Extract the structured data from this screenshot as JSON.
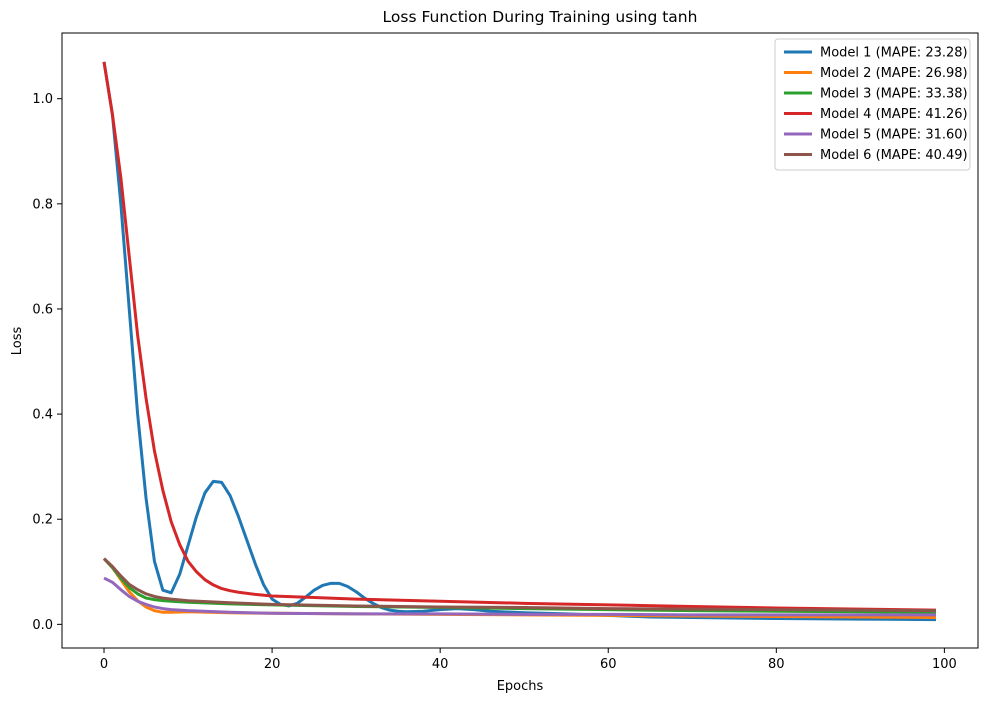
{
  "chart_data": {
    "type": "line",
    "title": "Loss Function During Training using tanh",
    "xlabel": "Epochs",
    "ylabel": "Loss",
    "xlim": [
      -5,
      104
    ],
    "ylim": [
      -0.045,
      1.125
    ],
    "xticks": [
      0,
      20,
      40,
      60,
      80,
      100
    ],
    "yticks": [
      0.0,
      0.2,
      0.4,
      0.6,
      0.8,
      1.0
    ],
    "xtick_labels": [
      "0",
      "20",
      "40",
      "60",
      "80",
      "100"
    ],
    "ytick_labels": [
      "0.0",
      "0.2",
      "0.4",
      "0.6",
      "0.8",
      "1.0"
    ],
    "grid": false,
    "legend_position": "top-right",
    "series": [
      {
        "name": "Model 1 (MAPE: 23.28)",
        "color": "#1f77b4",
        "points": [
          [
            0,
            1.07
          ],
          [
            1,
            0.97
          ],
          [
            2,
            0.8
          ],
          [
            3,
            0.6
          ],
          [
            4,
            0.4
          ],
          [
            5,
            0.24
          ],
          [
            6,
            0.12
          ],
          [
            7,
            0.065
          ],
          [
            8,
            0.06
          ],
          [
            9,
            0.095
          ],
          [
            10,
            0.15
          ],
          [
            11,
            0.205
          ],
          [
            12,
            0.25
          ],
          [
            13,
            0.272
          ],
          [
            14,
            0.27
          ],
          [
            15,
            0.245
          ],
          [
            16,
            0.205
          ],
          [
            17,
            0.16
          ],
          [
            18,
            0.115
          ],
          [
            19,
            0.075
          ],
          [
            20,
            0.048
          ],
          [
            21,
            0.038
          ],
          [
            22,
            0.035
          ],
          [
            23,
            0.04
          ],
          [
            24,
            0.052
          ],
          [
            25,
            0.065
          ],
          [
            26,
            0.074
          ],
          [
            27,
            0.078
          ],
          [
            28,
            0.078
          ],
          [
            29,
            0.072
          ],
          [
            30,
            0.062
          ],
          [
            31,
            0.05
          ],
          [
            32,
            0.04
          ],
          [
            33,
            0.032
          ],
          [
            34,
            0.027
          ],
          [
            35,
            0.025
          ],
          [
            36,
            0.024
          ],
          [
            38,
            0.025
          ],
          [
            40,
            0.028
          ],
          [
            42,
            0.03
          ],
          [
            44,
            0.028
          ],
          [
            46,
            0.025
          ],
          [
            50,
            0.022
          ],
          [
            55,
            0.02
          ],
          [
            60,
            0.017
          ],
          [
            65,
            0.014
          ],
          [
            70,
            0.013
          ],
          [
            80,
            0.011
          ],
          [
            90,
            0.01
          ],
          [
            99,
            0.009
          ]
        ]
      },
      {
        "name": "Model 2 (MAPE: 26.98)",
        "color": "#ff7f0e",
        "points": [
          [
            0,
            0.125
          ],
          [
            1,
            0.108
          ],
          [
            2,
            0.085
          ],
          [
            3,
            0.062
          ],
          [
            4,
            0.045
          ],
          [
            5,
            0.033
          ],
          [
            6,
            0.026
          ],
          [
            7,
            0.023
          ],
          [
            8,
            0.023
          ],
          [
            10,
            0.024
          ],
          [
            15,
            0.022
          ],
          [
            20,
            0.021
          ],
          [
            30,
            0.02
          ],
          [
            40,
            0.019
          ],
          [
            50,
            0.018
          ],
          [
            60,
            0.017
          ],
          [
            70,
            0.016
          ],
          [
            80,
            0.015
          ],
          [
            90,
            0.014
          ],
          [
            99,
            0.013
          ]
        ]
      },
      {
        "name": "Model 3 (MAPE: 33.38)",
        "color": "#2ca02c",
        "points": [
          [
            0,
            0.125
          ],
          [
            1,
            0.108
          ],
          [
            2,
            0.088
          ],
          [
            3,
            0.07
          ],
          [
            4,
            0.058
          ],
          [
            5,
            0.05
          ],
          [
            6,
            0.047
          ],
          [
            7,
            0.045
          ],
          [
            8,
            0.044
          ],
          [
            10,
            0.042
          ],
          [
            15,
            0.039
          ],
          [
            20,
            0.037
          ],
          [
            30,
            0.034
          ],
          [
            40,
            0.032
          ],
          [
            50,
            0.03
          ],
          [
            60,
            0.028
          ],
          [
            70,
            0.026
          ],
          [
            80,
            0.025
          ],
          [
            90,
            0.024
          ],
          [
            99,
            0.023
          ]
        ]
      },
      {
        "name": "Model 4 (MAPE: 41.26)",
        "color": "#d62728",
        "points": [
          [
            0,
            1.07
          ],
          [
            1,
            0.97
          ],
          [
            2,
            0.85
          ],
          [
            3,
            0.7
          ],
          [
            4,
            0.55
          ],
          [
            5,
            0.43
          ],
          [
            6,
            0.33
          ],
          [
            7,
            0.255
          ],
          [
            8,
            0.195
          ],
          [
            9,
            0.152
          ],
          [
            10,
            0.12
          ],
          [
            11,
            0.1
          ],
          [
            12,
            0.085
          ],
          [
            13,
            0.075
          ],
          [
            14,
            0.068
          ],
          [
            15,
            0.064
          ],
          [
            16,
            0.061
          ],
          [
            18,
            0.057
          ],
          [
            20,
            0.054
          ],
          [
            25,
            0.051
          ],
          [
            30,
            0.048
          ],
          [
            40,
            0.044
          ],
          [
            50,
            0.04
          ],
          [
            60,
            0.037
          ],
          [
            70,
            0.034
          ],
          [
            80,
            0.031
          ],
          [
            90,
            0.029
          ],
          [
            99,
            0.027
          ]
        ]
      },
      {
        "name": "Model 5 (MAPE: 31.60)",
        "color": "#9467bd",
        "points": [
          [
            0,
            0.088
          ],
          [
            1,
            0.08
          ],
          [
            2,
            0.066
          ],
          [
            3,
            0.053
          ],
          [
            4,
            0.044
          ],
          [
            5,
            0.038
          ],
          [
            6,
            0.033
          ],
          [
            7,
            0.03
          ],
          [
            8,
            0.028
          ],
          [
            10,
            0.026
          ],
          [
            15,
            0.023
          ],
          [
            20,
            0.021
          ],
          [
            30,
            0.02
          ],
          [
            40,
            0.02
          ],
          [
            50,
            0.019
          ],
          [
            60,
            0.019
          ],
          [
            70,
            0.018
          ],
          [
            80,
            0.018
          ],
          [
            90,
            0.018
          ],
          [
            99,
            0.018
          ]
        ]
      },
      {
        "name": "Model 6 (MAPE: 40.49)",
        "color": "#8c564b",
        "points": [
          [
            0,
            0.125
          ],
          [
            1,
            0.11
          ],
          [
            2,
            0.092
          ],
          [
            3,
            0.076
          ],
          [
            4,
            0.066
          ],
          [
            5,
            0.058
          ],
          [
            6,
            0.053
          ],
          [
            7,
            0.05
          ],
          [
            8,
            0.048
          ],
          [
            10,
            0.045
          ],
          [
            15,
            0.041
          ],
          [
            20,
            0.038
          ],
          [
            30,
            0.035
          ],
          [
            40,
            0.033
          ],
          [
            50,
            0.032
          ],
          [
            60,
            0.03
          ],
          [
            70,
            0.029
          ],
          [
            80,
            0.028
          ],
          [
            90,
            0.027
          ],
          [
            99,
            0.026
          ]
        ]
      }
    ]
  }
}
